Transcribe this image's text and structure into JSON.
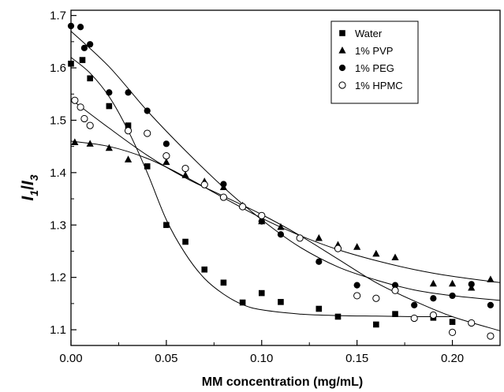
{
  "chart_data": {
    "type": "scatter",
    "title": "",
    "xlabel": "MM concentration (mg/mL)",
    "ylabel": {
      "main": "I",
      "sub1": "1",
      "slash": "/",
      "sub2": "3"
    },
    "xlim": [
      0.0,
      0.225
    ],
    "ylim": [
      1.07,
      1.71
    ],
    "xticks": [
      0.0,
      0.05,
      0.1,
      0.15,
      0.2
    ],
    "xtick_labels": [
      "0.00",
      "0.05",
      "0.10",
      "0.15",
      "0.20"
    ],
    "yticks": [
      1.1,
      1.2,
      1.3,
      1.4,
      1.5,
      1.6,
      1.7
    ],
    "ytick_labels": [
      "1.1",
      "1.2",
      "1.3",
      "1.4",
      "1.5",
      "1.6",
      "1.7"
    ],
    "grid": false,
    "legend": "top-right",
    "series": [
      {
        "name": "Water",
        "marker": "square",
        "x": [
          0.0,
          0.006,
          0.01,
          0.02,
          0.03,
          0.04,
          0.05,
          0.06,
          0.07,
          0.08,
          0.09,
          0.1,
          0.11,
          0.13,
          0.14,
          0.16,
          0.17,
          0.19,
          0.2
        ],
        "y": [
          1.608,
          1.615,
          1.58,
          1.527,
          1.49,
          1.412,
          1.3,
          1.268,
          1.215,
          1.19,
          1.152,
          1.17,
          1.153,
          1.14,
          1.125,
          1.11,
          1.13,
          1.123,
          1.115
        ],
        "fit": {
          "x": [
            0.0,
            0.01,
            0.02,
            0.03,
            0.04,
            0.05,
            0.06,
            0.07,
            0.08,
            0.09,
            0.1,
            0.12,
            0.14,
            0.16,
            0.18,
            0.2
          ],
          "y": [
            1.62,
            1.59,
            1.545,
            1.48,
            1.4,
            1.31,
            1.245,
            1.198,
            1.168,
            1.148,
            1.138,
            1.13,
            1.127,
            1.126,
            1.125,
            1.125
          ]
        }
      },
      {
        "name": "1% PVP",
        "marker": "triangle",
        "x": [
          0.002,
          0.01,
          0.02,
          0.03,
          0.05,
          0.06,
          0.07,
          0.08,
          0.09,
          0.1,
          0.11,
          0.13,
          0.14,
          0.15,
          0.16,
          0.17,
          0.19,
          0.2,
          0.21,
          0.22
        ],
        "y": [
          1.458,
          1.455,
          1.447,
          1.425,
          1.42,
          1.395,
          1.383,
          1.372,
          1.337,
          1.307,
          1.296,
          1.275,
          1.262,
          1.258,
          1.245,
          1.238,
          1.188,
          1.188,
          1.18,
          1.196
        ],
        "fit": {
          "x": [
            0.0,
            0.02,
            0.04,
            0.06,
            0.08,
            0.1,
            0.12,
            0.14,
            0.16,
            0.18,
            0.2,
            0.225
          ],
          "y": [
            1.46,
            1.45,
            1.427,
            1.392,
            1.352,
            1.313,
            1.28,
            1.253,
            1.232,
            1.215,
            1.202,
            1.19
          ]
        }
      },
      {
        "name": "1% PEG",
        "marker": "circle",
        "x": [
          0.0,
          0.005,
          0.007,
          0.01,
          0.02,
          0.03,
          0.04,
          0.05,
          0.08,
          0.1,
          0.11,
          0.13,
          0.15,
          0.17,
          0.18,
          0.19,
          0.2,
          0.21,
          0.22
        ],
        "y": [
          1.68,
          1.678,
          1.638,
          1.645,
          1.553,
          1.553,
          1.518,
          1.455,
          1.378,
          1.307,
          1.282,
          1.23,
          1.185,
          1.185,
          1.147,
          1.16,
          1.165,
          1.187,
          1.147
        ],
        "fit": {
          "x": [
            0.0,
            0.02,
            0.04,
            0.06,
            0.08,
            0.1,
            0.12,
            0.14,
            0.16,
            0.18,
            0.2,
            0.225
          ],
          "y": [
            1.67,
            1.602,
            1.518,
            1.442,
            1.372,
            1.31,
            1.258,
            1.22,
            1.195,
            1.176,
            1.165,
            1.156
          ]
        }
      },
      {
        "name": "1% HPMC",
        "marker": "open-circle",
        "x": [
          0.002,
          0.005,
          0.007,
          0.01,
          0.03,
          0.04,
          0.05,
          0.06,
          0.07,
          0.08,
          0.09,
          0.1,
          0.12,
          0.14,
          0.15,
          0.16,
          0.17,
          0.18,
          0.19,
          0.2,
          0.21,
          0.22
        ],
        "y": [
          1.538,
          1.525,
          1.503,
          1.49,
          1.48,
          1.475,
          1.432,
          1.408,
          1.377,
          1.353,
          1.335,
          1.318,
          1.275,
          1.255,
          1.165,
          1.16,
          1.175,
          1.122,
          1.128,
          1.095,
          1.113,
          1.088
        ],
        "fit": {
          "x": [
            0.0,
            0.02,
            0.04,
            0.06,
            0.08,
            0.1,
            0.12,
            0.14,
            0.16,
            0.18,
            0.2,
            0.225
          ],
          "y": [
            1.54,
            1.485,
            1.433,
            1.39,
            1.355,
            1.32,
            1.28,
            1.235,
            1.19,
            1.155,
            1.125,
            1.098
          ]
        }
      }
    ]
  }
}
